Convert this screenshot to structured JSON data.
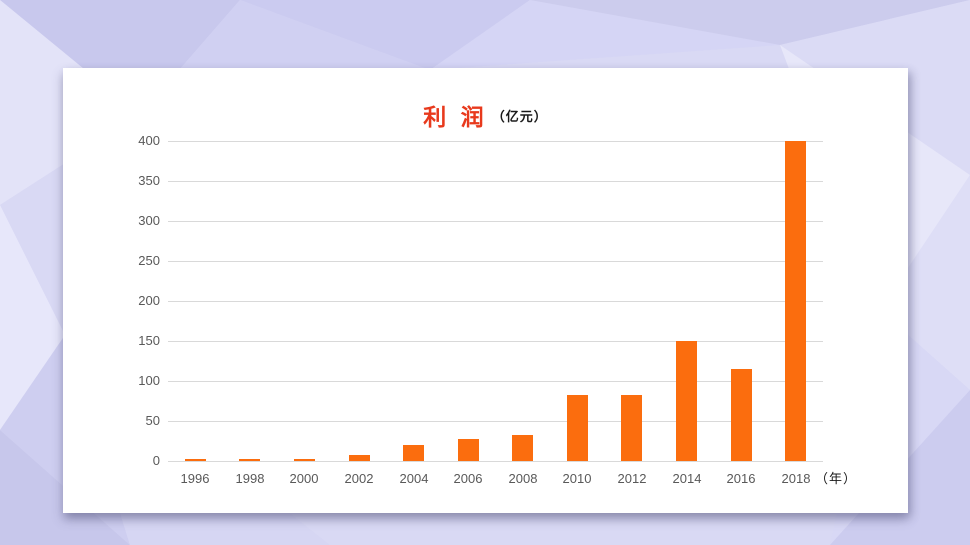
{
  "slide": {
    "card_background": "#ffffff",
    "background_base": "#d9d9f4"
  },
  "chart_data": {
    "type": "bar",
    "title": "利 润",
    "title_unit": "（亿元）",
    "x_unit_label": "（年）",
    "categories": [
      "1996",
      "1998",
      "2000",
      "2002",
      "2004",
      "2006",
      "2008",
      "2010",
      "2012",
      "2014",
      "2016",
      "2018"
    ],
    "values": [
      2,
      3,
      3,
      8,
      20,
      27,
      32,
      83,
      83,
      150,
      115,
      400
    ],
    "xlabel": "（年）",
    "ylabel": "",
    "ylim": [
      0,
      400
    ],
    "ytick_step": 50,
    "yticks": [
      0,
      50,
      100,
      150,
      200,
      250,
      300,
      350,
      400
    ],
    "grid": true,
    "legend_position": "none",
    "colors": {
      "bar": "#fb6d0e",
      "title": "#e8391c",
      "title_unit": "#1a1a1a",
      "tick_label": "#595959",
      "gridline": "#d9d9d9",
      "x_unit_label": "#1a1a1a"
    }
  }
}
